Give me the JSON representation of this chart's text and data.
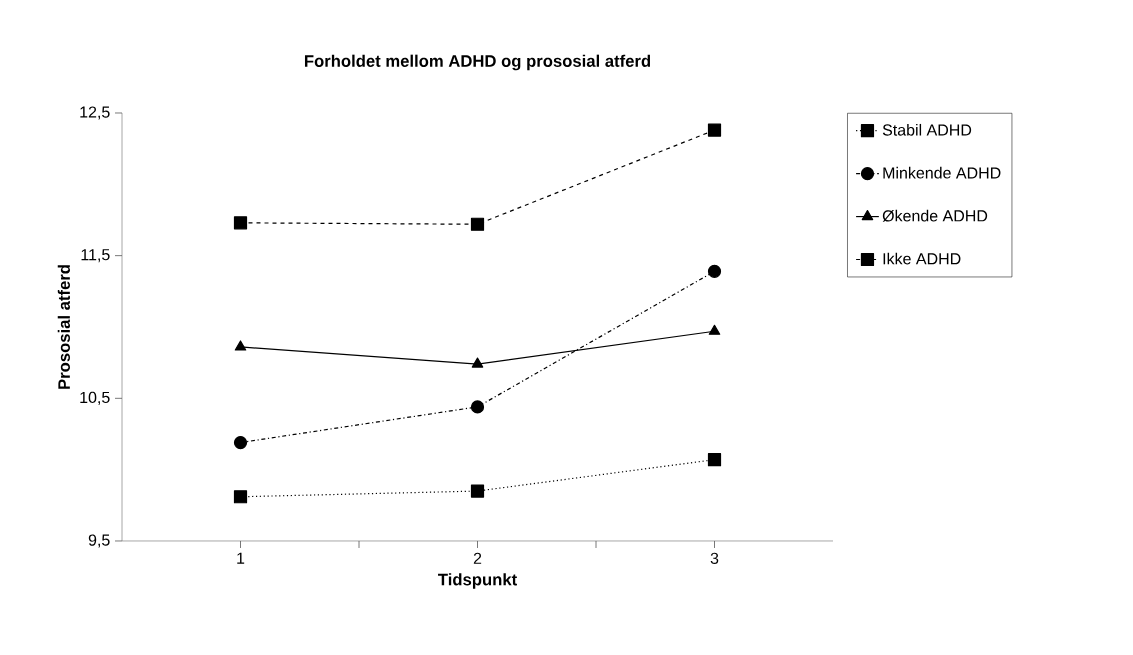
{
  "chart_data": {
    "type": "line",
    "title": "Forholdet mellom ADHD og prososial atferd",
    "xlabel": "Tidspunkt",
    "ylabel": "Prososial atferd",
    "x": [
      1,
      2,
      3
    ],
    "xlim": [
      0.5,
      3.5
    ],
    "xticks": [
      {
        "value": 1,
        "label": "1"
      },
      {
        "value": 1.5,
        "label": null
      },
      {
        "value": 2,
        "label": "2"
      },
      {
        "value": 2.5,
        "label": null
      },
      {
        "value": 3,
        "label": "3"
      }
    ],
    "ylim": [
      9.5,
      12.5
    ],
    "yticks": [
      {
        "value": 9.5,
        "label": "9,5"
      },
      {
        "value": 10.5,
        "label": "10,5"
      },
      {
        "value": 11.5,
        "label": "11,5"
      },
      {
        "value": 12.5,
        "label": "12,5"
      }
    ],
    "grid": false,
    "legend": "right",
    "series": [
      {
        "name": "Stabil ADHD",
        "color": "#000000",
        "values": [
          9.81,
          9.85,
          10.07
        ],
        "marker": "square",
        "line_style": "dotted"
      },
      {
        "name": "Minkende ADHD",
        "color": "#000000",
        "values": [
          10.19,
          10.44,
          11.39
        ],
        "marker": "circle",
        "line_style": "dashdot"
      },
      {
        "name": "Økende ADHD",
        "color": "#000000",
        "values": [
          10.86,
          10.74,
          10.97
        ],
        "marker": "triangle",
        "line_style": "solid"
      },
      {
        "name": "Ikke ADHD",
        "color": "#000000",
        "values": [
          11.73,
          11.72,
          12.38
        ],
        "marker": "square",
        "line_style": "dashed"
      }
    ]
  }
}
